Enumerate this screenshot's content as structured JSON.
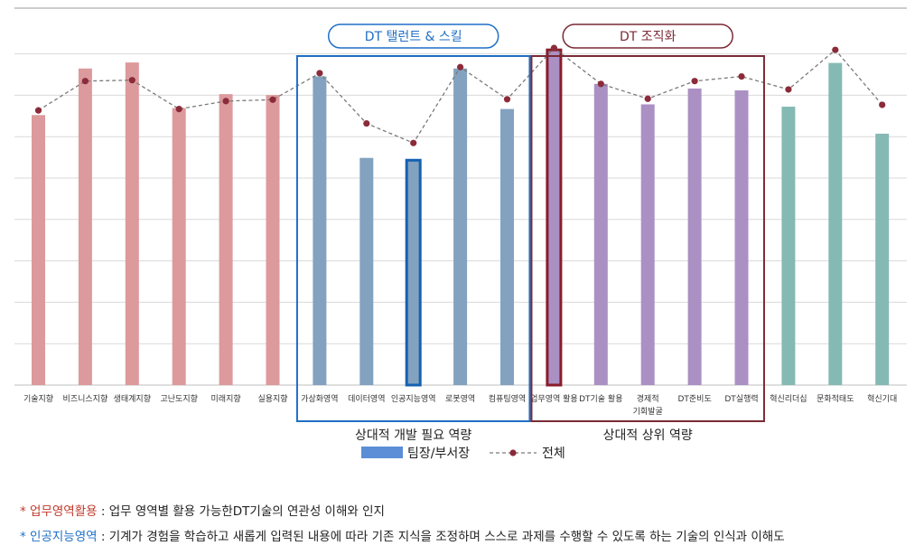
{
  "chart_data": {
    "type": "bar",
    "categories": [
      "기술지향",
      "비즈니스지향",
      "생태계지향",
      "고난도지향",
      "미래지향",
      "실용지향",
      "가상화영역",
      "데이터영역",
      "인공지능영역",
      "로봇영역",
      "컴퓨팅영역",
      "업무영역 활용",
      "DT기술 활용",
      "경제적\n기회발굴",
      "DT준비도",
      "DT실행력",
      "혁신리더십",
      "문화적태도",
      "혁신기대"
    ],
    "group_of_category": [
      "a",
      "a",
      "a",
      "a",
      "a",
      "a",
      "b",
      "b",
      "b",
      "b",
      "b",
      "c",
      "c",
      "c",
      "c",
      "c",
      "d",
      "d",
      "d"
    ],
    "group_colors": {
      "a": "#dc9a9c",
      "b": "#82a2c0",
      "c": "#ab90c4",
      "d": "#85bab4"
    },
    "highlighted": [
      8,
      11
    ],
    "series": [
      {
        "name": "팀장/부서장",
        "type": "bar",
        "values": [
          58,
          68,
          69.3,
          59.5,
          62.5,
          62.3,
          66.3,
          48.8,
          48.3,
          68,
          59.3,
          72,
          64.7,
          60.3,
          63.7,
          63.3,
          59.8,
          69.2,
          54
        ]
      },
      {
        "name": "전체",
        "type": "line",
        "values": [
          59,
          65.3,
          65.5,
          59.3,
          61,
          61.3,
          67,
          56.2,
          52,
          68.3,
          61.4,
          72.4,
          64.7,
          61.5,
          65.3,
          66.3,
          63.5,
          72,
          60.2
        ]
      }
    ],
    "ylim": [
      0,
      80
    ],
    "grid": true,
    "legend": {
      "bar_label": "팀장/부서장",
      "line_label": "전체",
      "placement": "bottom-center"
    },
    "annotations": [
      {
        "title": "DT 탤런트 & 스킬",
        "caption": "상대적 개발 필요 역량",
        "start": 6,
        "end": 10,
        "color": "#1f6fc5"
      },
      {
        "title": "DT 조직화",
        "caption": "상대적 상위 역량",
        "start": 11,
        "end": 15,
        "color": "#7a2a35"
      }
    ]
  },
  "notes": [
    {
      "star": "*",
      "key": "업무영역활용",
      "text": " : 업무 영역별 활용 가능한DT기술의 연관성 이해와 인지"
    },
    {
      "star": "*",
      "key": "인공지능영역",
      "text": " : 기계가 경험을 학습하고 새롭게 입력된 내용에 따라 기존 지식을 조정하며 스스로 과제를 수행할 수 있도록 하는 기술의 인식과 이해도"
    }
  ]
}
